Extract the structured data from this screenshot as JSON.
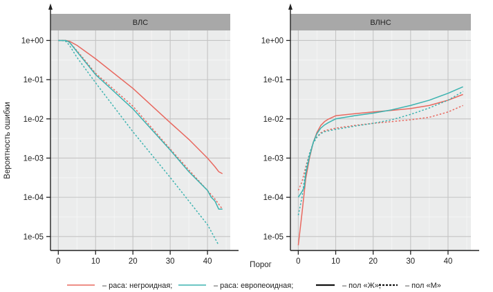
{
  "chart_data": {
    "type": "line",
    "ylabel": "Вероятность ошибки",
    "xlabel": "Порог",
    "yscale": "log",
    "ylim": [
      4.4e-06,
      1.8
    ],
    "xlim": [
      -2.1,
      46.1
    ],
    "x_ticks": [
      "0",
      "10",
      "20",
      "30",
      "40"
    ],
    "x_tick_values": [
      0,
      10,
      20,
      30,
      40
    ],
    "y_ticks": [
      "1e+00",
      "1e-01",
      "1e-02",
      "1e-03",
      "1e-04",
      "1e-05"
    ],
    "y_tick_values": [
      1,
      0.1,
      0.01,
      0.001,
      0.0001,
      1e-05
    ],
    "grid": true,
    "colors": {
      "red": "#e8685f",
      "teal": "#3bb3b0",
      "strip": "#a8a8a8",
      "panel": "#ebecec"
    },
    "panels": [
      {
        "title": "ВЛС",
        "series": [
          {
            "name": "раса: негроидная, пол «Ж»",
            "color": "red",
            "dash": false,
            "x": [
              0,
              2,
              3,
              5,
              10,
              20,
              30,
              35,
              40,
              42,
              43,
              44
            ],
            "y": [
              1,
              1,
              0.95,
              0.75,
              0.34,
              0.06,
              0.008,
              0.003,
              0.001,
              0.0006,
              0.00045,
              0.0004
            ]
          },
          {
            "name": "раса: негроидная, пол «М»",
            "color": "red",
            "dash": true,
            "x": [
              0,
              2,
              3,
              5,
              10,
              20,
              30,
              35,
              40,
              42,
              44
            ],
            "y": [
              1,
              1,
              0.9,
              0.55,
              0.145,
              0.021,
              0.0017,
              0.0005,
              0.00015,
              9e-05,
              5e-05
            ]
          },
          {
            "name": "раса: европеоидная, пол «Ж»",
            "color": "teal",
            "dash": false,
            "x": [
              0,
              2,
              3,
              5,
              10,
              20,
              30,
              35,
              40,
              41,
              42,
              43,
              44
            ],
            "y": [
              1,
              1,
              0.9,
              0.52,
              0.134,
              0.018,
              0.0016,
              0.00045,
              0.00015,
              0.0001,
              8e-05,
              5e-05,
              5e-05
            ]
          },
          {
            "name": "раса: европеоидная, пол «М»",
            "color": "teal",
            "dash": true,
            "x": [
              0,
              1,
              2,
              3,
              5,
              10,
              20,
              30,
              40,
              43
            ],
            "y": [
              1,
              1,
              0.95,
              0.75,
              0.37,
              0.083,
              0.0047,
              0.00032,
              2e-05,
              6e-06
            ]
          }
        ]
      },
      {
        "title": "ВЛНС",
        "series": [
          {
            "name": "раса: негроидная, пол «Ж»",
            "color": "red",
            "dash": false,
            "x": [
              0,
              1,
              2,
              3,
              4,
              5,
              6,
              7,
              8,
              10,
              15,
              20,
              25,
              30,
              35,
              40,
              44
            ],
            "y": [
              6e-06,
              4e-05,
              0.0003,
              0.001,
              0.0025,
              0.0045,
              0.0068,
              0.0085,
              0.0098,
              0.012,
              0.0135,
              0.015,
              0.0165,
              0.0183,
              0.022,
              0.03,
              0.042
            ]
          },
          {
            "name": "раса: негроидная, пол «М»",
            "color": "red",
            "dash": true,
            "x": [
              0,
              1,
              2,
              3,
              4,
              5,
              6,
              7,
              10,
              15,
              20,
              25,
              30,
              35,
              40,
              44
            ],
            "y": [
              0.00015,
              0.00025,
              0.0006,
              0.0013,
              0.0024,
              0.0035,
              0.0044,
              0.005,
              0.0058,
              0.0068,
              0.0077,
              0.0085,
              0.0095,
              0.011,
              0.015,
              0.022
            ]
          },
          {
            "name": "раса: европеоидная, пол «Ж»",
            "color": "teal",
            "dash": false,
            "x": [
              0,
              1,
              1.6,
              2,
              3,
              4,
              5,
              6,
              7,
              8,
              10,
              15,
              20,
              25,
              30,
              35,
              40,
              44
            ],
            "y": [
              0.0001,
              0.00014,
              0.00018,
              0.0004,
              0.0011,
              0.0025,
              0.0042,
              0.0058,
              0.007,
              0.008,
              0.01,
              0.012,
              0.014,
              0.017,
              0.022,
              0.03,
              0.045,
              0.066
            ]
          },
          {
            "name": "раса: европеоидная, пол «М»",
            "color": "teal",
            "dash": true,
            "x": [
              0,
              1,
              2,
              3,
              4,
              5,
              6,
              7,
              10,
              15,
              20,
              25,
              30,
              35,
              40,
              44
            ],
            "y": [
              3.5e-05,
              0.0001,
              0.0005,
              0.0013,
              0.0024,
              0.0034,
              0.0042,
              0.0047,
              0.0054,
              0.0065,
              0.0077,
              0.0095,
              0.013,
              0.019,
              0.03,
              0.05
            ]
          }
        ]
      }
    ],
    "legend": {
      "placement": "bottom",
      "items": [
        {
          "label": "– раса: негроидная;",
          "color": "red",
          "dash": false
        },
        {
          "label": "– раса: европеоидная;",
          "color": "teal",
          "dash": false
        },
        {
          "label": "– пол «Ж»;",
          "color": "#111111",
          "dash": false
        },
        {
          "label": "– пол «М»",
          "color": "#111111",
          "dash": true
        }
      ]
    }
  }
}
